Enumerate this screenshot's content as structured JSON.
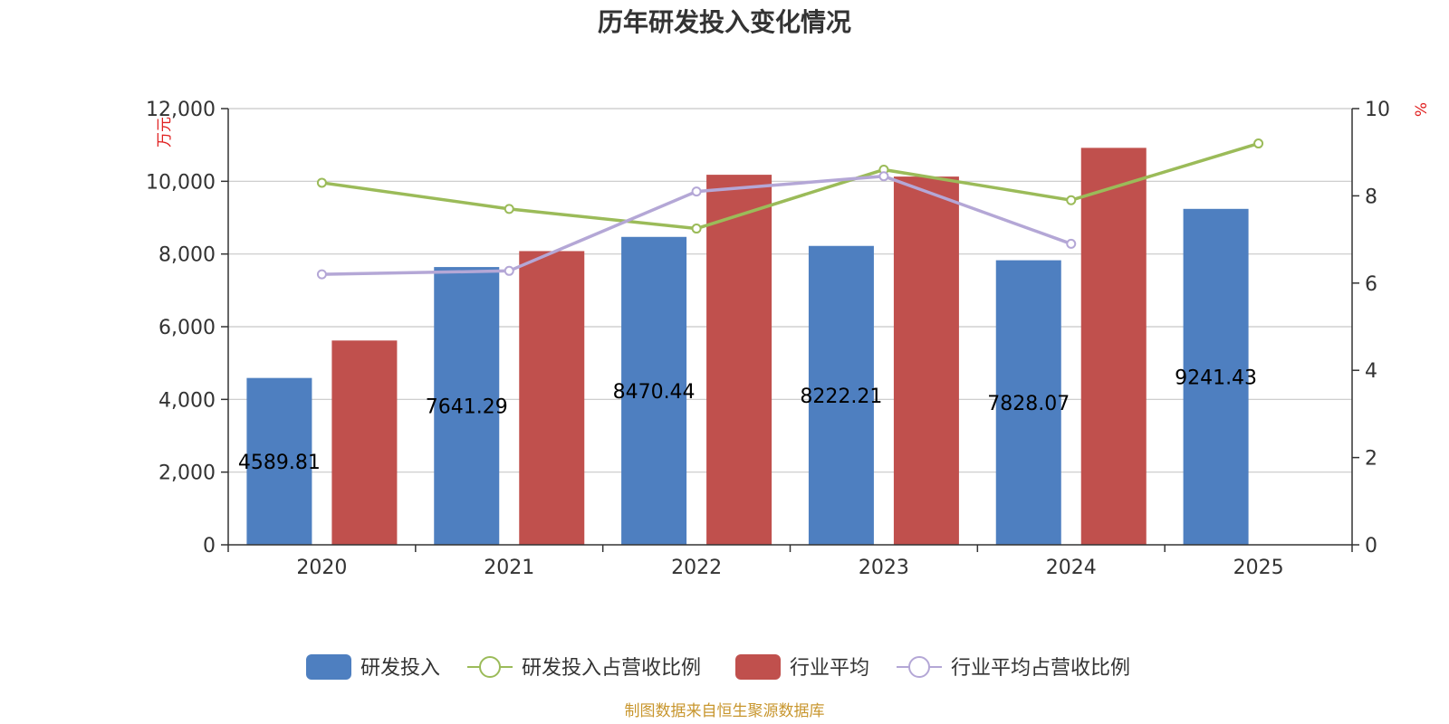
{
  "colors": {
    "rd_bar": "#4e7fc0",
    "industry_bar": "#c0504d",
    "rd_ratio_line": "#9bbb59",
    "industry_ratio_line": "#b4a7d6",
    "axis": "#333333",
    "grid": "#c8c8c8",
    "source": "#c8962e",
    "unit": "#e02020"
  },
  "chart_data": {
    "type": "bar",
    "title": "历年研发投入变化情况",
    "categories": [
      "2020",
      "2021",
      "2022",
      "2023",
      "2024",
      "2025"
    ],
    "y_left": {
      "label": "万元",
      "ylim": [
        0,
        12000
      ],
      "ticks": [
        "0",
        "2,000",
        "4,000",
        "6,000",
        "8,000",
        "10,000",
        "12,000"
      ]
    },
    "y_right": {
      "label": "%",
      "ylim": [
        0,
        10
      ],
      "ticks": [
        "0",
        "2",
        "4",
        "6",
        "8",
        "10"
      ]
    },
    "grid": true,
    "legend_position": "bottom-center",
    "series": [
      {
        "name": "研发投入",
        "type": "bar",
        "axis": "left",
        "values": [
          4589.81,
          7641.29,
          8470.44,
          8222.21,
          7828.07,
          9241.43
        ],
        "labels": [
          "4589.81",
          "7641.29",
          "8470.44",
          "8222.21",
          "7828.07",
          "9241.43"
        ]
      },
      {
        "name": "研发投入占营收比例",
        "type": "line",
        "axis": "right",
        "values": [
          8.3,
          7.7,
          7.25,
          8.6,
          7.9,
          9.2
        ]
      },
      {
        "name": "行业平均",
        "type": "bar",
        "axis": "left",
        "values": [
          5620,
          8080,
          10180,
          10130,
          10920,
          null
        ]
      },
      {
        "name": "行业平均占营收比例",
        "type": "line",
        "axis": "right",
        "values": [
          6.2,
          6.28,
          8.1,
          8.45,
          6.9,
          null
        ]
      }
    ],
    "source": "制图数据来自恒生聚源数据库"
  }
}
